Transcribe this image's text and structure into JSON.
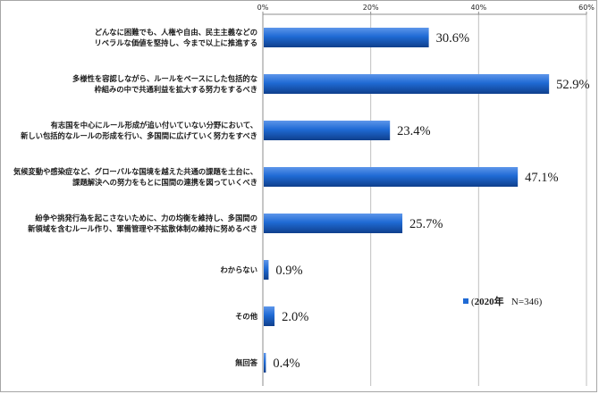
{
  "chart_data": {
    "type": "bar",
    "orientation": "horizontal",
    "categories": [
      [
        "どんなに困難でも、人権や自由、民主主義などの",
        "リベラルな価値を堅持し、今まで以上に推進する"
      ],
      [
        "多様性を容認しながら、ルールをベースにした包括的な",
        "枠組みの中で共通利益を拡大する努力をするべき"
      ],
      [
        "有志国を中心にルール形成が追い付いていない分野において、",
        "新しい包括的なルールの形成を行い、多国間に広げていく努力をすべき"
      ],
      [
        "気候変動や感染症など、グローバルな国境を越えた共通の課題を土台に、",
        "課題解決への努力をもとに国間の連携を図っていくべき"
      ],
      [
        "紛争や挑発行為を起こさないために、力の均衡を維持し、多国間の",
        "新領域を含むルール作り、軍備管理や不拡散体制の維持に努めるべき"
      ],
      [
        "わからない"
      ],
      [
        "その他"
      ],
      [
        "無回答"
      ]
    ],
    "series": [
      {
        "name": "2020年 N=346",
        "values": [
          30.6,
          52.9,
          23.4,
          47.1,
          25.7,
          0.9,
          2.0,
          0.4
        ]
      }
    ],
    "value_labels": [
      "30.6%",
      "52.9%",
      "23.4%",
      "47.1%",
      "25.7%",
      "0.9%",
      "2.0%",
      "0.4%"
    ],
    "xlim": [
      0,
      60
    ],
    "ticks": [
      0,
      20,
      40,
      60
    ],
    "tick_labels": [
      "0%",
      "20%",
      "40%",
      "60%"
    ],
    "gridlines": true,
    "axis_position": "top",
    "legend_position": "right-middle",
    "legend": {
      "year": "2020年",
      "n": "N=346"
    },
    "bar_color": "#1f6ad4",
    "bar_color_light": "#5d96ea",
    "bar_color_dark": "#0f3f8c",
    "grid_color": "#bfbfbf"
  }
}
